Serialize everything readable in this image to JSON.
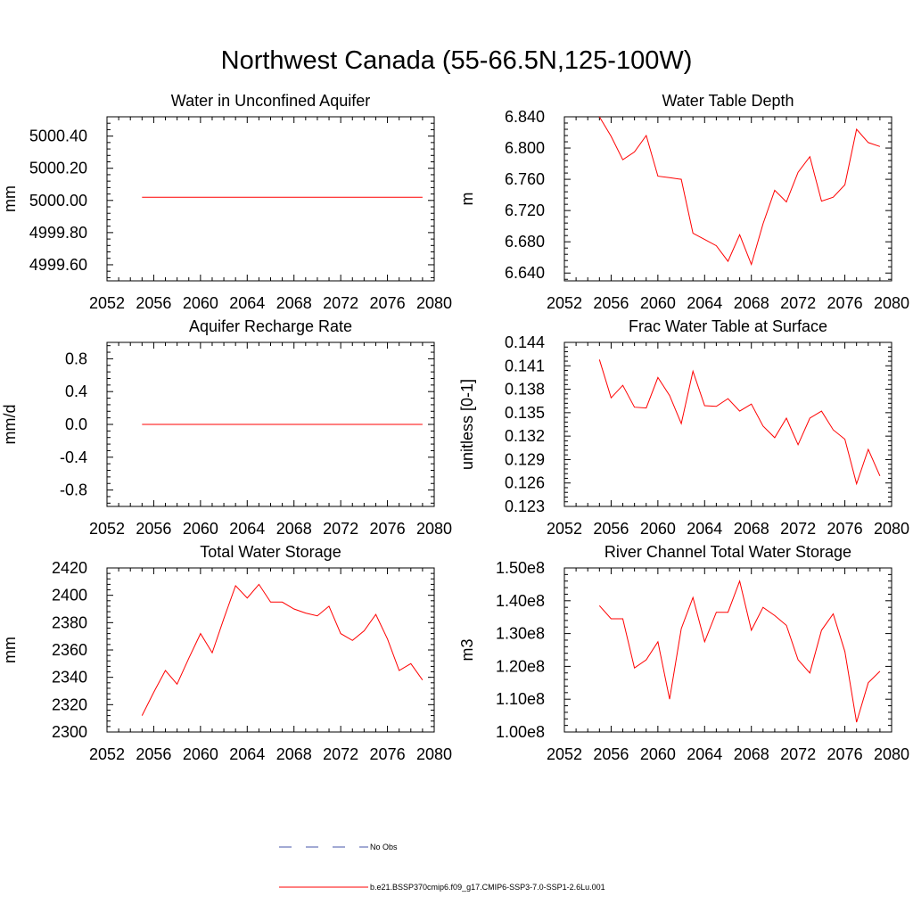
{
  "title": "Northwest Canada (55-66.5N,125-100W)",
  "colors": {
    "model_line": "#ff0000",
    "obs_line": "#4455aa",
    "axis": "#000000"
  },
  "legend": {
    "obs_label": "No Obs",
    "model_label": "b.e21.BSSP370cmip6.f09_g17.CMIP6-SSP3-7.0-SSP1-2.6Lu.001"
  },
  "chart_data": [
    {
      "type": "line",
      "title": "Water in Unconfined Aquifer",
      "ylabel": "mm",
      "xlim": [
        2052,
        2080
      ],
      "xticks": [
        2052,
        2056,
        2060,
        2064,
        2068,
        2072,
        2076,
        2080
      ],
      "xtick_labels": [
        "2052",
        "2056",
        "2060",
        "2064",
        "2068",
        "2072",
        "2076",
        "2080"
      ],
      "ylim": [
        4999.5,
        5000.52
      ],
      "yticks": [
        4999.6,
        4999.8,
        5000.0,
        5000.2,
        5000.4
      ],
      "ytick_labels": [
        "4999.60",
        "4999.80",
        "5000.00",
        "5000.20",
        "5000.40"
      ],
      "x": [
        2055,
        2079
      ],
      "values": [
        5000.02,
        5000.02
      ]
    },
    {
      "type": "line",
      "title": "Water Table Depth",
      "ylabel": "m",
      "xlim": [
        2052,
        2080
      ],
      "xticks": [
        2052,
        2056,
        2060,
        2064,
        2068,
        2072,
        2076,
        2080
      ],
      "xtick_labels": [
        "2052",
        "2056",
        "2060",
        "2064",
        "2068",
        "2072",
        "2076",
        "2080"
      ],
      "ylim": [
        6.63,
        6.84
      ],
      "yticks": [
        6.64,
        6.68,
        6.72,
        6.76,
        6.8,
        6.84
      ],
      "ytick_labels": [
        "6.640",
        "6.680",
        "6.720",
        "6.760",
        "6.800",
        "6.840"
      ],
      "x": [
        2055,
        2056,
        2057,
        2058,
        2059,
        2060,
        2061,
        2062,
        2063,
        2064,
        2065,
        2066,
        2067,
        2068,
        2069,
        2070,
        2071,
        2072,
        2073,
        2074,
        2075,
        2076,
        2077,
        2078,
        2079
      ],
      "values": [
        6.84,
        6.815,
        6.785,
        6.795,
        6.816,
        6.764,
        6.762,
        6.76,
        6.691,
        6.683,
        6.675,
        6.655,
        6.689,
        6.651,
        6.703,
        6.746,
        6.731,
        6.769,
        6.789,
        6.732,
        6.737,
        6.753,
        6.824,
        6.807,
        6.802
      ]
    },
    {
      "type": "line",
      "title": "Aquifer Recharge Rate",
      "ylabel": "mm/d",
      "xlim": [
        2052,
        2080
      ],
      "xticks": [
        2052,
        2056,
        2060,
        2064,
        2068,
        2072,
        2076,
        2080
      ],
      "xtick_labels": [
        "2052",
        "2056",
        "2060",
        "2064",
        "2068",
        "2072",
        "2076",
        "2080"
      ],
      "ylim": [
        -1.0,
        1.0
      ],
      "yticks": [
        -0.8,
        -0.4,
        0.0,
        0.4,
        0.8
      ],
      "ytick_labels": [
        "-0.8",
        "-0.4",
        "0.0",
        "0.4",
        "0.8"
      ],
      "x": [
        2055,
        2079
      ],
      "values": [
        0.0,
        0.0
      ]
    },
    {
      "type": "line",
      "title": "Frac Water Table at Surface",
      "ylabel": "unitless [0-1]",
      "xlim": [
        2052,
        2080
      ],
      "xticks": [
        2052,
        2056,
        2060,
        2064,
        2068,
        2072,
        2076,
        2080
      ],
      "xtick_labels": [
        "2052",
        "2056",
        "2060",
        "2064",
        "2068",
        "2072",
        "2076",
        "2080"
      ],
      "ylim": [
        0.123,
        0.144
      ],
      "yticks": [
        0.123,
        0.126,
        0.129,
        0.132,
        0.135,
        0.138,
        0.141,
        0.144
      ],
      "ytick_labels": [
        "0.123",
        "0.126",
        "0.129",
        "0.132",
        "0.135",
        "0.138",
        "0.141",
        "0.144"
      ],
      "x": [
        2055,
        2056,
        2057,
        2058,
        2059,
        2060,
        2061,
        2062,
        2063,
        2064,
        2065,
        2066,
        2067,
        2068,
        2069,
        2070,
        2071,
        2072,
        2073,
        2074,
        2075,
        2076,
        2077,
        2078,
        2079
      ],
      "values": [
        0.1418,
        0.1369,
        0.1385,
        0.1357,
        0.1356,
        0.1395,
        0.1372,
        0.1336,
        0.1403,
        0.1359,
        0.1358,
        0.1368,
        0.1352,
        0.1361,
        0.1333,
        0.1318,
        0.1343,
        0.1309,
        0.1343,
        0.1352,
        0.1328,
        0.1316,
        0.1259,
        0.1303,
        0.1269
      ]
    },
    {
      "type": "line",
      "title": "Total Water Storage",
      "ylabel": "mm",
      "xlim": [
        2052,
        2080
      ],
      "xticks": [
        2052,
        2056,
        2060,
        2064,
        2068,
        2072,
        2076,
        2080
      ],
      "xtick_labels": [
        "2052",
        "2056",
        "2060",
        "2064",
        "2068",
        "2072",
        "2076",
        "2080"
      ],
      "ylim": [
        2300,
        2420
      ],
      "yticks": [
        2300,
        2320,
        2340,
        2360,
        2380,
        2400,
        2420
      ],
      "ytick_labels": [
        "2300",
        "2320",
        "2340",
        "2360",
        "2380",
        "2400",
        "2420"
      ],
      "x": [
        2055,
        2056,
        2057,
        2058,
        2059,
        2060,
        2061,
        2062,
        2063,
        2064,
        2065,
        2066,
        2067,
        2068,
        2069,
        2070,
        2071,
        2072,
        2073,
        2074,
        2075,
        2076,
        2077,
        2078,
        2079
      ],
      "values": [
        2312,
        2329,
        2345,
        2335,
        2354,
        2372,
        2358,
        2383,
        2407,
        2398,
        2408,
        2395,
        2395,
        2390,
        2387,
        2385,
        2392,
        2372,
        2367,
        2374,
        2386,
        2368,
        2345,
        2350,
        2338
      ]
    },
    {
      "type": "line",
      "title": "River Channel Total Water Storage",
      "ylabel": "m3",
      "xlim": [
        2052,
        2080
      ],
      "xticks": [
        2052,
        2056,
        2060,
        2064,
        2068,
        2072,
        2076,
        2080
      ],
      "xtick_labels": [
        "2052",
        "2056",
        "2060",
        "2064",
        "2068",
        "2072",
        "2076",
        "2080"
      ],
      "ylim": [
        100000000,
        150000000
      ],
      "yticks": [
        100000000,
        110000000,
        120000000,
        130000000,
        140000000,
        150000000
      ],
      "ytick_labels": [
        "1.00e8",
        "1.10e8",
        "1.20e8",
        "1.30e8",
        "1.40e8",
        "1.50e8"
      ],
      "x": [
        2055,
        2056,
        2057,
        2058,
        2059,
        2060,
        2061,
        2062,
        2063,
        2064,
        2065,
        2066,
        2067,
        2068,
        2069,
        2070,
        2071,
        2072,
        2073,
        2074,
        2075,
        2076,
        2077,
        2078,
        2079
      ],
      "values": [
        138500000,
        134500000,
        134500000,
        119500000,
        122000000,
        127500000,
        110000000,
        131500000,
        141000000,
        127500000,
        136500000,
        136500000,
        146000000,
        131000000,
        138000000,
        135500000,
        132500000,
        122000000,
        118000000,
        131000000,
        136000000,
        124500000,
        103000000,
        115000000,
        118500000
      ]
    }
  ]
}
